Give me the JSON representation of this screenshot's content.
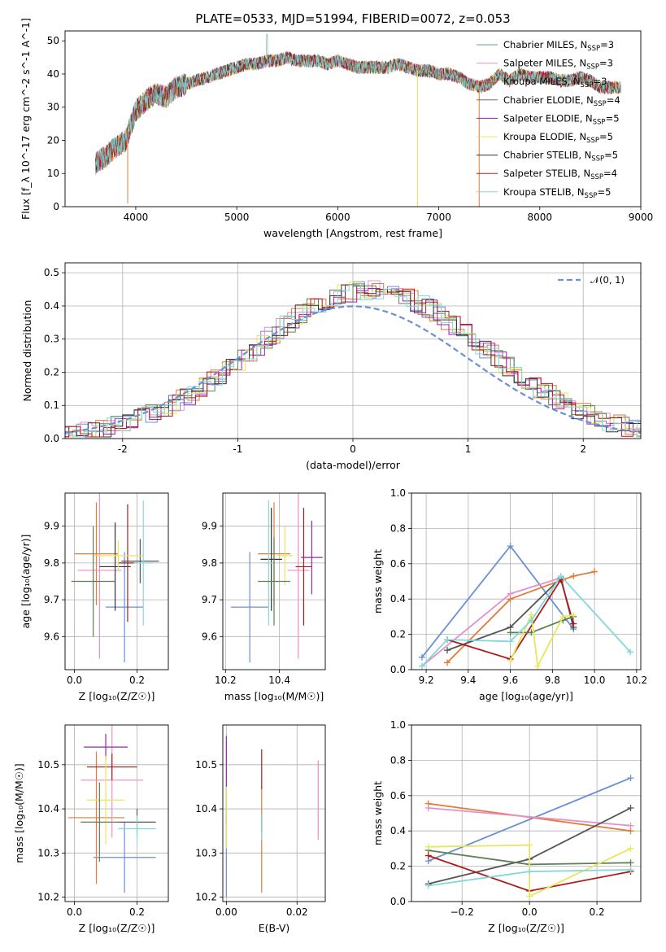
{
  "title": "PLATE=0533, MJD=51994, FIBERID=0072, z=0.053",
  "colors": [
    "#6b8fd6",
    "#e07b39",
    "#e88fc8",
    "#333333",
    "#9a22b5",
    "#e7e75a",
    "#555555",
    "#ad1b1b",
    "#81d8d8",
    "#5c7f55"
  ],
  "models": [
    {
      "label": "Chabrier MILES, N",
      "sub": "SSP",
      "suffix": "=3",
      "color": "#5c9ea0"
    },
    {
      "label": "Salpeter MILES, N",
      "sub": "SSP",
      "suffix": "=3",
      "color": "#e88fc8"
    },
    {
      "label": "Kroupa MILES, N",
      "sub": "SSP",
      "suffix": "=3",
      "color": "#e07b39"
    },
    {
      "label": "Chabrier ELODIE, N",
      "sub": "SSP",
      "suffix": "=4",
      "color": "#5c7f55"
    },
    {
      "label": "Salpeter ELODIE, N",
      "sub": "SSP",
      "suffix": "=5",
      "color": "#9a22b5"
    },
    {
      "label": "Kroupa ELODIE, N",
      "sub": "SSP",
      "suffix": "=5",
      "color": "#e7e75a"
    },
    {
      "label": "Chabrier STELIB, N",
      "sub": "SSP",
      "suffix": "=5",
      "color": "#333333"
    },
    {
      "label": "Salpeter STELIB, N",
      "sub": "SSP",
      "suffix": "=4",
      "color": "#ad1b1b"
    },
    {
      "label": "Kroupa STELIB, N",
      "sub": "SSP",
      "suffix": "=5",
      "color": "#81d8d8"
    }
  ],
  "chart_data": [
    {
      "id": "spectrum",
      "type": "line",
      "xlabel": "wavelength [Angstrom, rest frame]",
      "ylabel": "Flux [f_λ 10^-17 erg cm^-2 s^-1 A^-1]",
      "xlim": [
        3300,
        9000
      ],
      "ylim": [
        0,
        53
      ],
      "xticks": [
        4000,
        5000,
        6000,
        7000,
        8000,
        9000
      ],
      "yticks": [
        0,
        10,
        20,
        30,
        40,
        50
      ],
      "curve": {
        "x": [
          3600,
          3700,
          3800,
          3900,
          4000,
          4100,
          4200,
          4300,
          4400,
          4500,
          4600,
          4700,
          4800,
          4900,
          5000,
          5100,
          5200,
          5300,
          5400,
          5500,
          5600,
          5700,
          5800,
          5900,
          6000,
          6100,
          6200,
          6300,
          6400,
          6500,
          6600,
          6700,
          6800,
          6900,
          7000,
          7100,
          7200,
          7300,
          7400,
          7500,
          7600,
          7700,
          7800,
          7900,
          8000,
          8100,
          8200,
          8300,
          8400,
          8500,
          8600,
          8700,
          8800
        ],
        "y": [
          13,
          15,
          18,
          20,
          29,
          32,
          34,
          33,
          36,
          37,
          38,
          39,
          40,
          41,
          42,
          43,
          43,
          44,
          44,
          45,
          44,
          44,
          44,
          43,
          44,
          43,
          42,
          42,
          42,
          42,
          43,
          42,
          41,
          41,
          40,
          40,
          39,
          37,
          36,
          37,
          40,
          38,
          40,
          39,
          39,
          39,
          38,
          38,
          39,
          38,
          36,
          36,
          36
        ]
      },
      "dropouts": [
        {
          "x": 3920,
          "y": 1
        },
        {
          "x": 6790,
          "y": 0
        },
        {
          "x": 7400,
          "y": 0
        }
      ]
    },
    {
      "id": "residuals",
      "type": "histogram",
      "xlabel": "(data-model)/error",
      "ylabel": "Normed distribution",
      "xlim": [
        -2.5,
        2.5
      ],
      "ylim": [
        0,
        0.53
      ],
      "xticks": [
        -2,
        -1,
        0,
        1,
        2
      ],
      "yticks": [
        0.0,
        0.1,
        0.2,
        0.3,
        0.4,
        0.5
      ],
      "legend": "𝒩(0, 1)",
      "legend_position": "top-right"
    },
    {
      "id": "age_vs_Z",
      "type": "errorbar",
      "xlabel": "Z [log₁₀(Z/Z☉)]",
      "ylabel": "age  [log₁₀(age/yr)]",
      "xlim": [
        -0.03,
        0.3
      ],
      "ylim": [
        9.51,
        9.99
      ],
      "xticks": [
        0.0,
        0.2
      ],
      "yticks": [
        9.6,
        9.7,
        9.8,
        9.9
      ],
      "points": [
        {
          "x": 0.16,
          "y": 9.68,
          "xerr": 0.06,
          "yerr": 0.15,
          "c": 0
        },
        {
          "x": 0.07,
          "y": 9.825,
          "xerr": 0.07,
          "yerr": 0.14,
          "c": 1
        },
        {
          "x": 0.08,
          "y": 9.78,
          "xerr": 0.07,
          "yerr": 0.24,
          "c": 2
        },
        {
          "x": 0.13,
          "y": 9.79,
          "xerr": 0.05,
          "yerr": 0.12,
          "c": 3
        },
        {
          "x": 0.17,
          "y": 9.8,
          "xerr": 0.03,
          "yerr": 0.16,
          "c": 7
        },
        {
          "x": 0.21,
          "y": 9.805,
          "xerr": 0.06,
          "yerr": 0.06,
          "c": 6
        },
        {
          "x": 0.14,
          "y": 9.82,
          "xerr": 0.08,
          "yerr": 0.04,
          "c": 5
        },
        {
          "x": 0.22,
          "y": 9.8,
          "xerr": 0.03,
          "yerr": 0.17,
          "c": 8
        },
        {
          "x": 0.06,
          "y": 9.75,
          "xerr": 0.07,
          "yerr": 0.15,
          "c": 9
        }
      ]
    },
    {
      "id": "age_vs_mass",
      "type": "errorbar",
      "xlabel": "mass [log₁₀(M/M☉)]",
      "ylabel": "",
      "xlim": [
        10.19,
        10.57
      ],
      "ylim": [
        9.51,
        9.99
      ],
      "xticks": [
        10.2,
        10.4
      ],
      "yticks": [
        9.6,
        9.7,
        9.8,
        9.9
      ],
      "points": [
        {
          "x": 10.29,
          "y": 9.68,
          "xerr": 0.07,
          "yerr": 0.15,
          "c": 0
        },
        {
          "x": 10.38,
          "y": 9.825,
          "xerr": 0.06,
          "yerr": 0.14,
          "c": 1
        },
        {
          "x": 10.47,
          "y": 9.78,
          "xerr": 0.04,
          "yerr": 0.24,
          "c": 2
        },
        {
          "x": 10.37,
          "y": 9.81,
          "xerr": 0.04,
          "yerr": 0.14,
          "c": 3
        },
        {
          "x": 10.49,
          "y": 9.79,
          "xerr": 0.03,
          "yerr": 0.16,
          "c": 7
        },
        {
          "x": 10.52,
          "y": 9.815,
          "xerr": 0.04,
          "yerr": 0.1,
          "c": 4
        },
        {
          "x": 10.42,
          "y": 9.82,
          "xerr": 0.03,
          "yerr": 0.08,
          "c": 5
        },
        {
          "x": 10.36,
          "y": 9.8,
          "xerr": 0.02,
          "yerr": 0.17,
          "c": 8
        },
        {
          "x": 10.38,
          "y": 9.75,
          "xerr": 0.06,
          "yerr": 0.12,
          "c": 9
        }
      ]
    },
    {
      "id": "mw_vs_age",
      "type": "line",
      "xlabel": "age  [log₁₀(age/yr)]",
      "ylabel": "mass weight",
      "xlim": [
        9.13,
        10.22
      ],
      "ylim": [
        0,
        1
      ],
      "xticks": [
        9.2,
        9.4,
        9.6,
        9.8,
        10.0,
        10.2
      ],
      "yticks": [
        0.0,
        0.2,
        0.4,
        0.6,
        0.8,
        1.0
      ],
      "series": [
        {
          "c": 0,
          "x": [
            9.18,
            9.6,
            9.9
          ],
          "y": [
            0.07,
            0.7,
            0.23
          ]
        },
        {
          "c": 1,
          "x": [
            9.3,
            9.6,
            9.85,
            9.9,
            10.0
          ],
          "y": [
            0.04,
            0.4,
            0.51,
            0.53,
            0.555
          ]
        },
        {
          "c": 2,
          "x": [
            9.18,
            9.6,
            9.84
          ],
          "y": [
            0.02,
            0.43,
            0.52
          ]
        },
        {
          "c": 6,
          "x": [
            9.3,
            9.6,
            9.84,
            9.9
          ],
          "y": [
            0.11,
            0.24,
            0.52,
            0.24
          ]
        },
        {
          "c": 7,
          "x": [
            9.3,
            9.6,
            9.84,
            9.9
          ],
          "y": [
            0.17,
            0.06,
            0.51,
            0.26
          ]
        },
        {
          "c": 9,
          "x": [
            9.6,
            9.7,
            9.85,
            9.9
          ],
          "y": [
            0.21,
            0.21,
            0.28,
            0.3
          ]
        },
        {
          "c": 5,
          "x": [
            9.6,
            9.7,
            9.73,
            9.85,
            9.9
          ],
          "y": [
            0.05,
            0.31,
            0.02,
            0.3,
            0.31
          ]
        },
        {
          "c": 8,
          "x": [
            9.18,
            9.3,
            9.6,
            9.7,
            9.84,
            10.17
          ],
          "y": [
            0.02,
            0.17,
            0.16,
            0.28,
            0.53,
            0.1
          ]
        }
      ]
    },
    {
      "id": "mass_vs_Z",
      "type": "errorbar",
      "xlabel": "Z [log₁₀(Z/Z☉)]",
      "ylabel": "mass [log₁₀(M/M☉)]",
      "xlim": [
        -0.03,
        0.3
      ],
      "ylim": [
        10.19,
        10.59
      ],
      "xticks": [
        0.0,
        0.2
      ],
      "yticks": [
        10.2,
        10.3,
        10.4,
        10.5
      ],
      "points": [
        {
          "x": 0.16,
          "y": 10.29,
          "xerr": 0.1,
          "yerr": 0.08,
          "c": 0
        },
        {
          "x": 0.07,
          "y": 10.38,
          "xerr": 0.09,
          "yerr": 0.15,
          "c": 1
        },
        {
          "x": 0.12,
          "y": 10.465,
          "xerr": 0.1,
          "yerr": 0.13,
          "c": 2
        },
        {
          "x": 0.2,
          "y": 10.37,
          "xerr": 0.06,
          "yerr": 0.03,
          "c": 6
        },
        {
          "x": 0.1,
          "y": 10.54,
          "xerr": 0.07,
          "yerr": 0.03,
          "c": 4
        },
        {
          "x": 0.12,
          "y": 10.495,
          "xerr": 0.08,
          "yerr": 0.03,
          "c": 7
        },
        {
          "x": 0.1,
          "y": 10.42,
          "xerr": 0.06,
          "yerr": 0.1,
          "c": 5
        },
        {
          "x": 0.2,
          "y": 10.355,
          "xerr": 0.06,
          "yerr": 0.03,
          "c": 8
        },
        {
          "x": 0.08,
          "y": 10.37,
          "xerr": 0.06,
          "yerr": 0.09,
          "c": 9
        }
      ]
    },
    {
      "id": "mass_vs_EBV",
      "type": "errorbar",
      "xlabel": "E(B-V)",
      "ylabel": "",
      "xlim": [
        -0.001,
        0.028
      ],
      "ylim": [
        10.19,
        10.59
      ],
      "xticks": [
        0.0,
        0.02
      ],
      "yticks": [
        10.2,
        10.3,
        10.4,
        10.5
      ],
      "points": [
        {
          "x": 0.0,
          "y": 10.29,
          "xerr": 0,
          "yerr": 0.09,
          "c": 0
        },
        {
          "x": 0.01,
          "y": 10.33,
          "xerr": 0,
          "yerr": 0.12,
          "c": 1
        },
        {
          "x": 0.0,
          "y": 10.465,
          "xerr": 0,
          "yerr": 0.1,
          "c": 4
        },
        {
          "x": 0.01,
          "y": 10.49,
          "xerr": 0,
          "yerr": 0.045,
          "c": 7
        },
        {
          "x": 0.026,
          "y": 10.42,
          "xerr": 0,
          "yerr": 0.09,
          "c": 2
        },
        {
          "x": 0.0,
          "y": 10.38,
          "xerr": 0,
          "yerr": 0.07,
          "c": 5
        },
        {
          "x": 0.01,
          "y": 10.37,
          "xerr": 0,
          "yerr": 0.02,
          "c": 6
        },
        {
          "x": 0.01,
          "y": 10.36,
          "xerr": 0,
          "yerr": 0.03,
          "c": 8
        }
      ]
    },
    {
      "id": "mw_vs_Z",
      "type": "line",
      "xlabel": "Z [log₁₀(Z/Z☉)]",
      "ylabel": "mass weight",
      "xlim": [
        -0.35,
        0.33
      ],
      "ylim": [
        0,
        1
      ],
      "xticks": [
        -0.2,
        0.0,
        0.2
      ],
      "yticks": [
        0.0,
        0.2,
        0.4,
        0.6,
        0.8,
        1.0
      ],
      "series": [
        {
          "c": 0,
          "x": [
            -0.3,
            0.3
          ],
          "y": [
            0.23,
            0.7
          ]
        },
        {
          "c": 1,
          "x": [
            -0.3,
            0.3
          ],
          "y": [
            0.555,
            0.4
          ]
        },
        {
          "c": 2,
          "x": [
            -0.3,
            0.3
          ],
          "y": [
            0.53,
            0.43
          ]
        },
        {
          "c": 6,
          "x": [
            -0.3,
            0.0,
            0.3
          ],
          "y": [
            0.1,
            0.24,
            0.53
          ]
        },
        {
          "c": 9,
          "x": [
            -0.3,
            0.0,
            0.3
          ],
          "y": [
            0.29,
            0.21,
            0.22
          ]
        },
        {
          "c": 7,
          "x": [
            -0.3,
            0.0,
            0.3
          ],
          "y": [
            0.26,
            0.06,
            0.17
          ]
        },
        {
          "c": 5,
          "x": [
            -0.3,
            0.0,
            0.0,
            0.3
          ],
          "y": [
            0.31,
            0.32,
            0.03,
            0.3
          ]
        },
        {
          "c": 8,
          "x": [
            -0.3,
            0.0,
            0.3
          ],
          "y": [
            0.09,
            0.17,
            0.18
          ]
        }
      ]
    }
  ]
}
